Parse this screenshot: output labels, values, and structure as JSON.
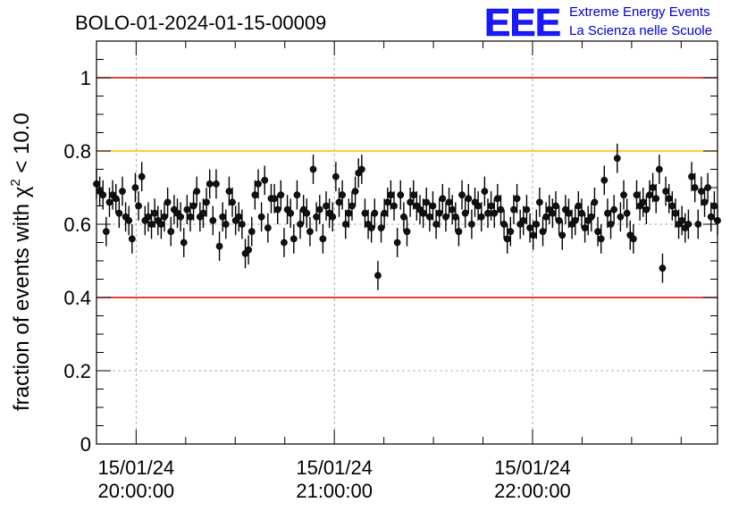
{
  "logo": {
    "mark": "EEE",
    "line1": "Extreme Energy Events",
    "line2": "La Scienza nelle Scuole",
    "color": "#0000cc"
  },
  "chart_data": {
    "type": "scatter",
    "title": "BOLO-01-2024-01-15-00009",
    "ylabel_prefix": "fraction of events with ",
    "ylabel_symbol": "χ",
    "ylabel_exponent": "2",
    "ylabel_suffix": " < 10.0",
    "ylim": [
      0,
      1.1
    ],
    "yticks": [
      {
        "value": 0,
        "label": "0"
      },
      {
        "value": 0.2,
        "label": "0.2"
      },
      {
        "value": 0.4,
        "label": "0.4"
      },
      {
        "value": 0.6,
        "label": "0.6"
      },
      {
        "value": 0.8,
        "label": "0.8"
      },
      {
        "value": 1.0,
        "label": "1"
      }
    ],
    "xlim": [
      "19:48:00",
      "22:56:00"
    ],
    "xticks": [
      {
        "time": "20:00:00",
        "date_label": "15/01/24",
        "time_label": "20:00:00"
      },
      {
        "time": "21:00:00",
        "date_label": "15/01/24",
        "time_label": "21:00:00"
      },
      {
        "time": "22:00:00",
        "date_label": "15/01/24",
        "time_label": "22:00:00"
      }
    ],
    "grid": true,
    "reference_lines": [
      {
        "y": 1.0,
        "color": "#dd0000"
      },
      {
        "y": 0.8,
        "color": "#ffbb00"
      },
      {
        "y": 0.4,
        "color": "#dd0000"
      }
    ],
    "series": [
      {
        "start_time": "19:48:00",
        "end_time": "22:56:00",
        "error": 0.04,
        "y": [
          0.71,
          0.69,
          0.68,
          0.58,
          0.66,
          0.68,
          0.67,
          0.63,
          0.69,
          0.62,
          0.61,
          0.56,
          0.7,
          0.65,
          0.73,
          0.61,
          0.62,
          0.6,
          0.63,
          0.61,
          0.6,
          0.62,
          0.66,
          0.58,
          0.64,
          0.63,
          0.62,
          0.55,
          0.64,
          0.62,
          0.65,
          0.69,
          0.62,
          0.63,
          0.66,
          0.71,
          0.61,
          0.71,
          0.54,
          0.62,
          0.6,
          0.69,
          0.66,
          0.61,
          0.62,
          0.6,
          0.52,
          0.53,
          0.58,
          0.68,
          0.71,
          0.62,
          0.72,
          0.59,
          0.67,
          0.67,
          0.64,
          0.68,
          0.55,
          0.64,
          0.63,
          0.56,
          0.68,
          0.6,
          0.64,
          0.63,
          0.58,
          0.75,
          0.62,
          0.64,
          0.56,
          0.65,
          0.63,
          0.62,
          0.73,
          0.66,
          0.68,
          0.6,
          0.63,
          0.65,
          0.69,
          0.74,
          0.75,
          0.63,
          0.6,
          0.59,
          0.63,
          0.46,
          0.59,
          0.63,
          0.66,
          0.68,
          0.65,
          0.55,
          0.68,
          0.62,
          0.58,
          0.66,
          0.68,
          0.65,
          0.64,
          0.63,
          0.66,
          0.62,
          0.65,
          0.6,
          0.63,
          0.67,
          0.62,
          0.66,
          0.64,
          0.62,
          0.58,
          0.68,
          0.63,
          0.67,
          0.6,
          0.66,
          0.65,
          0.62,
          0.69,
          0.63,
          0.65,
          0.63,
          0.67,
          0.64,
          0.6,
          0.56,
          0.58,
          0.64,
          0.67,
          0.6,
          0.61,
          0.64,
          0.59,
          0.57,
          0.6,
          0.66,
          0.58,
          0.62,
          0.64,
          0.63,
          0.65,
          0.61,
          0.57,
          0.64,
          0.63,
          0.6,
          0.61,
          0.65,
          0.63,
          0.59,
          0.61,
          0.62,
          0.66,
          0.58,
          0.56,
          0.72,
          0.63,
          0.6,
          0.64,
          0.78,
          0.62,
          0.68,
          0.63,
          0.57,
          0.56,
          0.68,
          0.65,
          0.66,
          0.64,
          0.68,
          0.7,
          0.67,
          0.75,
          0.48,
          0.69,
          0.67,
          0.65,
          0.63,
          0.6,
          0.61,
          0.59,
          0.6,
          0.73,
          0.7,
          0.6,
          0.69,
          0.66,
          0.7,
          0.62,
          0.65,
          0.61
        ]
      }
    ]
  }
}
